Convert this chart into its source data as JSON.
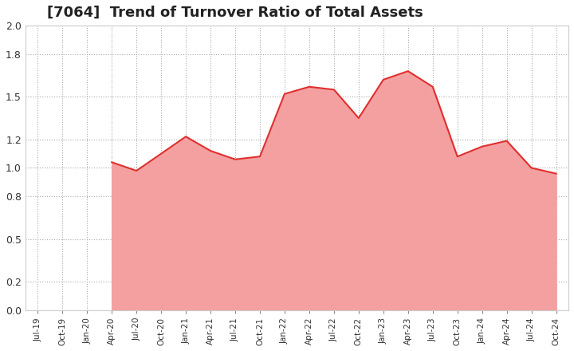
{
  "title": "[7064]  Trend of Turnover Ratio of Total Assets",
  "x_labels": [
    "Jul-19",
    "Oct-19",
    "Jan-20",
    "Apr-20",
    "Jul-20",
    "Oct-20",
    "Jan-21",
    "Apr-21",
    "Jul-21",
    "Oct-21",
    "Jan-22",
    "Apr-22",
    "Jul-22",
    "Oct-22",
    "Jan-23",
    "Apr-23",
    "Jul-23",
    "Oct-23",
    "Jan-24",
    "Apr-24",
    "Jul-24",
    "Oct-24"
  ],
  "y_values": [
    null,
    null,
    null,
    1.04,
    0.98,
    1.1,
    1.22,
    1.12,
    1.06,
    1.08,
    1.52,
    1.57,
    1.55,
    1.35,
    1.62,
    1.68,
    1.57,
    1.08,
    1.15,
    1.19,
    1.0,
    0.96
  ],
  "ylim": [
    0.0,
    2.0
  ],
  "yticks": [
    0.0,
    0.2,
    0.5,
    0.8,
    1.0,
    1.2,
    1.5,
    1.8,
    2.0
  ],
  "line_color": "#e03030",
  "fill_color": "#f4a0a0",
  "background_color": "#ffffff",
  "grid_color": "#aaaaaa",
  "title_color": "#222222",
  "title_fontsize": 13,
  "figsize": [
    7.2,
    4.4
  ],
  "dpi": 100
}
